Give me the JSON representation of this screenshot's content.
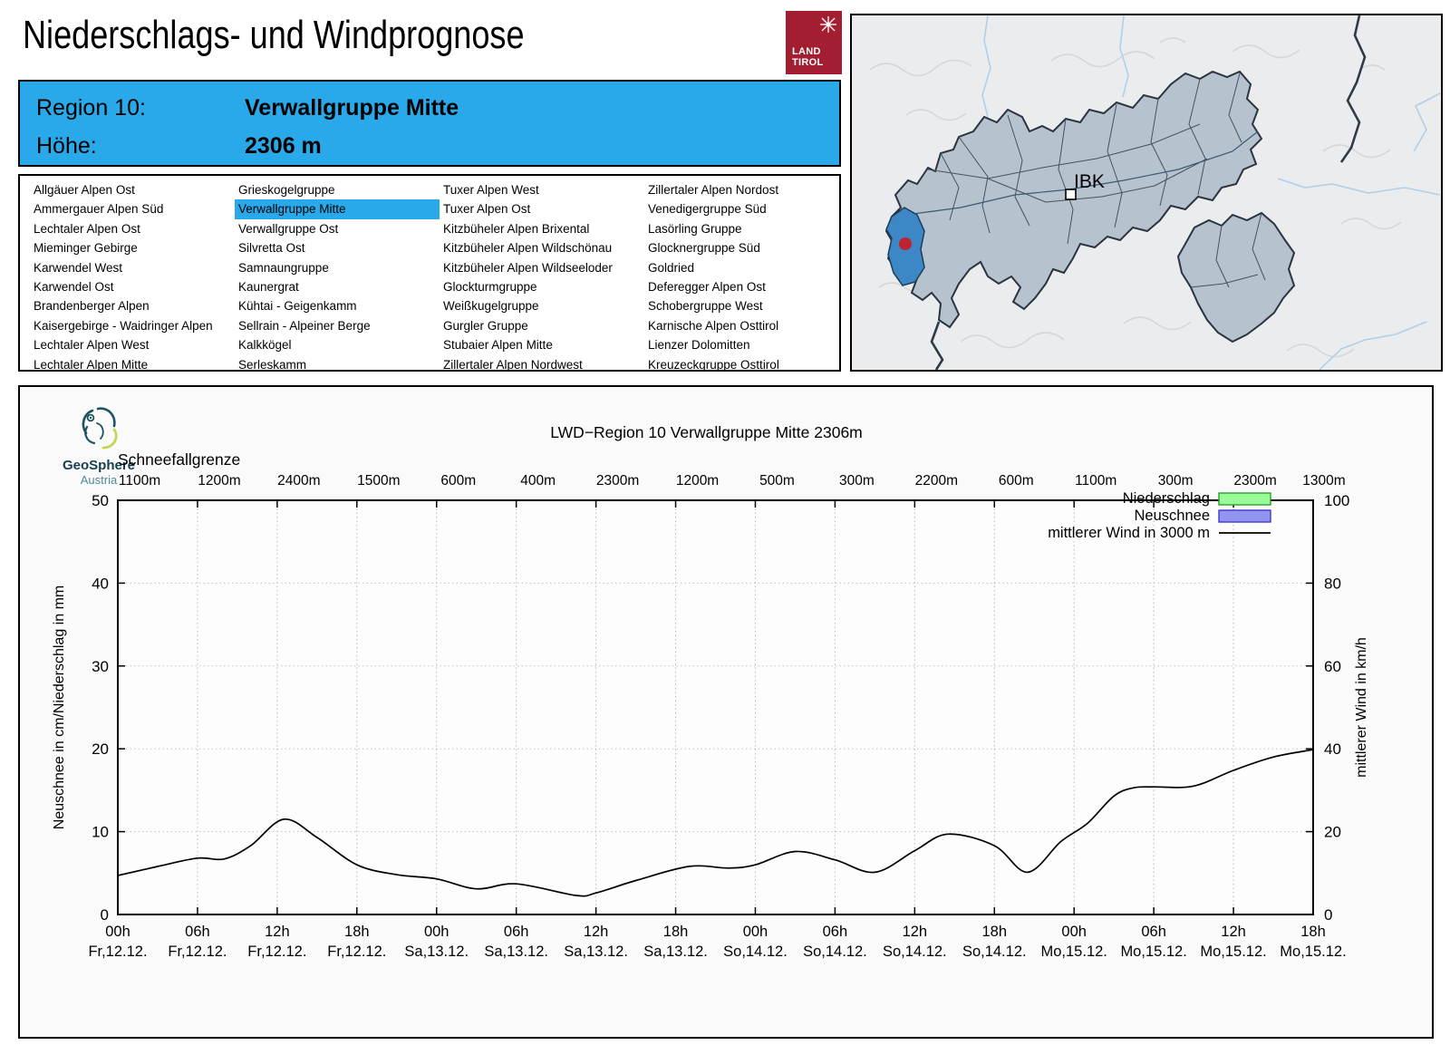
{
  "header": {
    "title": "Niederschlags- und Windprognose",
    "logo": {
      "line1": "LAND",
      "line2": "TIROL",
      "color": "#a31e31"
    }
  },
  "region_box": {
    "region_label": "Region 10:",
    "region_name": "Verwallgruppe Mitte",
    "altitude_label": "Höhe:",
    "altitude_value": "2306 m",
    "accent_color": "#29a9ea"
  },
  "region_list": {
    "selected": "Verwallgruppe Mitte",
    "columns": [
      [
        "Allgäuer Alpen Ost",
        "Ammergauer Alpen Süd",
        "Lechtaler Alpen Ost",
        "Mieminger Gebirge",
        "Karwendel West",
        "Karwendel Ost",
        "Brandenberger Alpen",
        "Kaisergebirge - Waidringer Alpen",
        "Lechtaler Alpen West",
        "Lechtaler Alpen Mitte"
      ],
      [
        "Grieskogelgruppe",
        "Verwallgruppe Mitte",
        "Verwallgruppe Ost",
        "Silvretta Ost",
        "Samnaungruppe",
        "Kaunergrat",
        "Kühtai - Geigenkamm",
        "Sellrain - Alpeiner Berge",
        "Kalkkögel",
        "Serleskamm"
      ],
      [
        "Tuxer Alpen West",
        "Tuxer Alpen Ost",
        "Kitzbüheler Alpen Brixental",
        "Kitzbüheler Alpen Wildschönau",
        "Kitzbüheler Alpen Wildseeloder",
        "Glockturmgruppe",
        "Weißkugelgruppe",
        "Gurgler Gruppe",
        "Stubaier Alpen Mitte",
        "Zillertaler Alpen Nordwest"
      ],
      [
        "Zillertaler Alpen Nordost",
        "Venedigergruppe Süd",
        "Lasörling Gruppe",
        "Glocknergruppe Süd",
        "Goldried",
        "Deferegger Alpen Ost",
        "Schobergruppe West",
        "Karnische Alpen Osttirol",
        "Lienzer Dolomitten",
        "Kreuzeckgruppe Osttirol"
      ]
    ]
  },
  "map": {
    "city_label": "IBK",
    "region_fill": "#b6c2ce",
    "highlight_color": "#3d87c6",
    "marker_color": "#c0232f"
  },
  "chart": {
    "source_logo": {
      "name": "GeoSphere",
      "sub": "Austria"
    },
    "title": "LWD−Region 10 Verwallgruppe Mitte 2306m",
    "top_axis_label": "Schneefallgrenze",
    "left_axis_label": "Neuschnee in cm/Niederschlag in mm",
    "right_axis_label": "mittlerer Wind in km/h",
    "legend": [
      {
        "label": "Niederschlag",
        "type": "box",
        "fill": "#98fb98",
        "border": "#2ca02c"
      },
      {
        "label": "Neuschnee",
        "type": "box",
        "fill": "#9393f0",
        "border": "#3c3ccc"
      },
      {
        "label": "mittlerer Wind in 3000 m",
        "type": "line",
        "color": "#000000"
      }
    ]
  },
  "chart_data": {
    "type": "line",
    "title": "LWD−Region 10 Verwallgruppe Mitte 2306m",
    "grid": true,
    "legend_position": "top-right",
    "ylim_left": [
      0,
      50
    ],
    "ylim_right": [
      0,
      100
    ],
    "left_ticks": [
      0,
      10,
      20,
      30,
      40,
      50
    ],
    "right_ticks": [
      0,
      20,
      40,
      60,
      80,
      100
    ],
    "snowfall_limit": {
      "label": "Schneefallgrenze",
      "values_m": [
        1100,
        1200,
        2400,
        1500,
        600,
        400,
        2300,
        1200,
        500,
        300,
        2200,
        600,
        1100,
        300,
        2300,
        1300
      ]
    },
    "x_ticks": [
      {
        "time": "00h",
        "date": "Fr,12.12."
      },
      {
        "time": "06h",
        "date": "Fr,12.12."
      },
      {
        "time": "12h",
        "date": "Fr,12.12."
      },
      {
        "time": "18h",
        "date": "Fr,12.12."
      },
      {
        "time": "00h",
        "date": "Sa,13.12."
      },
      {
        "time": "06h",
        "date": "Sa,13.12."
      },
      {
        "time": "12h",
        "date": "Sa,13.12."
      },
      {
        "time": "18h",
        "date": "Sa,13.12."
      },
      {
        "time": "00h",
        "date": "So,14.12."
      },
      {
        "time": "06h",
        "date": "So,14.12."
      },
      {
        "time": "12h",
        "date": "So,14.12."
      },
      {
        "time": "18h",
        "date": "So,14.12."
      },
      {
        "time": "00h",
        "date": "Mo,15.12."
      },
      {
        "time": "06h",
        "date": "Mo,15.12."
      },
      {
        "time": "12h",
        "date": "Mo,15.12."
      },
      {
        "time": "18h",
        "date": "Mo,15.12."
      }
    ],
    "x_hours_range": [
      0,
      90
    ],
    "series": [
      {
        "name": "mittlerer Wind in 3000 m",
        "axis": "right",
        "unit": "km/h",
        "x_hours": [
          0,
          3,
          6,
          8,
          10,
          12.5,
          15,
          18,
          21,
          24,
          27,
          30,
          34.5,
          36,
          39,
          43,
          46,
          48,
          51,
          54,
          57,
          60,
          62.5,
          66,
          68.5,
          71,
          73,
          75,
          76.5,
          78,
          81,
          84,
          87,
          90
        ],
        "values": [
          9.4,
          11.6,
          13.6,
          13.4,
          16.6,
          23,
          18.6,
          12,
          9.6,
          8.6,
          6.2,
          7.4,
          4.6,
          5.2,
          8.2,
          11.6,
          11.2,
          12,
          15.2,
          13.2,
          10.2,
          15.4,
          19.4,
          16.6,
          10.2,
          17.6,
          22,
          28.6,
          30.6,
          30.8,
          31,
          34.8,
          38,
          39.8
        ]
      },
      {
        "name": "Niederschlag",
        "axis": "left",
        "unit": "mm",
        "values": [],
        "note": "no bars visible over forecast period"
      },
      {
        "name": "Neuschnee",
        "axis": "left",
        "unit": "cm",
        "values": [],
        "note": "no bars visible over forecast period"
      }
    ]
  }
}
